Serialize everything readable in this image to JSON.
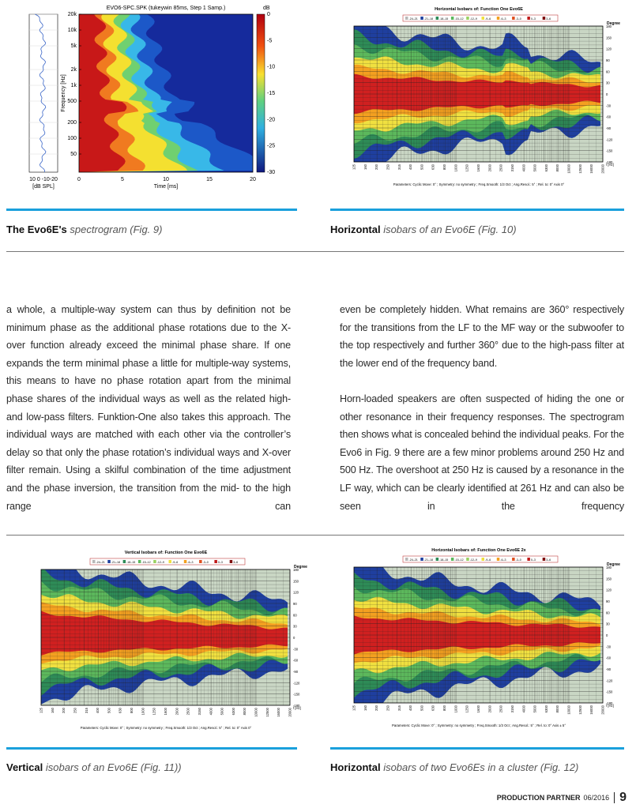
{
  "figures": [
    {
      "caption_bold": "The Evo6E's",
      "caption_italic": "spectrogram (Fig. 9)",
      "chart": {
        "title": "EVO6-SPC.SPK (tukeywin 85ms, Step 1 Samp.)",
        "ylabel": "Frequency [Hz]",
        "yticks": [
          "20k",
          "10k",
          "5k",
          "2k",
          "1k",
          "500",
          "200",
          "100",
          "50"
        ],
        "xticks": [
          "0",
          "5",
          "10",
          "15",
          "20"
        ],
        "xlabel": "Time [ms]",
        "colorbar_label": "dB",
        "colorbar_ticks": [
          "0",
          "-5",
          "-10",
          "-15",
          "-20",
          "-25",
          "-30"
        ],
        "response_ticks": "10 0 -10-20",
        "response_unit": "[dB SPL]"
      }
    },
    {
      "caption_bold": "Horizontal",
      "caption_italic": "isobars of an Evo6E (Fig. 10)",
      "chart": {
        "title": "Horizontal Isobars of:  Function One  Evo6E",
        "legend": [
          "-24–21",
          "-21–18",
          "-18–15",
          "-15–12",
          "-12–9",
          "-9–6",
          "-6–3",
          "-3–0",
          "0–3",
          "3–6"
        ],
        "ylabel": "Degree",
        "yticks": [
          "180",
          "150",
          "120",
          "90",
          "60",
          "30",
          "0",
          "-30",
          "-60",
          "-90",
          "-120",
          "-150",
          "-180"
        ],
        "xticks": [
          "125",
          "160",
          "200",
          "250",
          "315",
          "400",
          "500",
          "630",
          "800",
          "1000",
          "1250",
          "1600",
          "2000",
          "2500",
          "3150",
          "4000",
          "5000",
          "6300",
          "8000",
          "10000",
          "12500",
          "16000",
          "20000"
        ],
        "xlabel": "f [Hz]",
        "parameters": "Parameters:  Cyclic Move:  0°  ;  Symmetry: no symmetry  ;  Freq.Smooth: 1/3  Oct  ;  Ang.Resol.:  5°  ;  Rel. to: 0° Axis  0°"
      }
    },
    {
      "caption_bold": "Vertical",
      "caption_italic": "isobars of an Evo6E (Fig. 11))",
      "chart": {
        "title": "Vertical Isobars of:  Function One  Evo6E",
        "legend": [
          "-24–21",
          "-21–18",
          "-18–15",
          "-15–12",
          "-12–9",
          "-9–6",
          "-6–3",
          "-3–0",
          "0–3",
          "3–6"
        ],
        "ylabel": "Degree",
        "yticks": [
          "180",
          "150",
          "120",
          "90",
          "60",
          "30",
          "0",
          "-30",
          "-60",
          "-90",
          "-120",
          "-150",
          "-180"
        ],
        "xticks": [
          "125",
          "160",
          "200",
          "250",
          "315",
          "400",
          "500",
          "630",
          "800",
          "1000",
          "1250",
          "1600",
          "2000",
          "2500",
          "3150",
          "4000",
          "5000",
          "6300",
          "8000",
          "10000",
          "12500",
          "16000",
          "20000"
        ],
        "xlabel": "f [Hz]",
        "parameters": "Parameters:  Cyclic Move:  0°  ;  Symmetry: no symmetry  ;  Freq.Smooth: 1/3  Oct  ;  Ang.Resol.:  5°  ;  Rel. to: 0° Axis  0°"
      }
    },
    {
      "caption_bold": "Horizontal",
      "caption_italic": "isobars of two Evo6Es in a cluster (Fig. 12)",
      "chart": {
        "title": "Horizontal Isobars of:  Function One  Evo6E  2x",
        "legend": [
          "-24–21",
          "-21–18",
          "-18–15",
          "-15–12",
          "-12–9",
          "-9–6",
          "-6–3",
          "-3–0",
          "0–3",
          "3–6"
        ],
        "ylabel": "Degree",
        "yticks": [
          "180",
          "150",
          "120",
          "90",
          "60",
          "30",
          "0",
          "-30",
          "-60",
          "-90",
          "-120",
          "-150",
          "-180"
        ],
        "xticks": [
          "125",
          "160",
          "200",
          "250",
          "315",
          "400",
          "500",
          "630",
          "800",
          "1000",
          "1250",
          "1600",
          "2000",
          "2500",
          "3150",
          "4000",
          "5000",
          "6300",
          "8000",
          "10000",
          "12500",
          "16000",
          "20000"
        ],
        "xlabel": "f [Hz]",
        "parameters": "Parameters:  Cyclic Move:  0°  ;  Symmetry: no symmetry  ;  Freq.Smooth: 1/3  Oct  ;  Ang.Resol.:  5°  ;  Rel. to: 0° Axis  ± 5°"
      }
    }
  ],
  "body": {
    "left": "a whole, a multiple-way system can thus by definition not be minimum phase as the additional phase rotations due to the X-over function already exceed the minimal phase share. If one expands the term minimal phase a little for multiple-way systems, this means to have no phase rotation apart from the minimal phase shares of the individual ways as well as the related high- and low-pass filters. Funktion-One also takes this approach. The individual ways are matched with each other via the controller’s delay so that only the phase rotation’s individual ways and X-over filter remain. Using a skilful combination of the time adjustment and the phase inversion, the transition from the mid- to the high range can",
    "right": [
      "even be completely hidden. What remains are 360° respectively for the transitions from the LF to the MF way or the subwoofer to the top respectively and further 360° due to the high-pass filter at the lower end of the frequency band.",
      "Horn-loaded speakers are often suspected of hiding the one or other resonance in their frequency responses. The spectrogram then shows what is concealed behind the individual peaks. For the Evo6 in Fig. 9 there are a few minor problems around 250 Hz and 500 Hz. The overshoot at 250 Hz is caused by a resonance in the LF way, which can be clearly identified at 261 Hz and can also be seen in the frequency"
    ]
  },
  "footer": {
    "magazine": "PRODUCTION PARTNER",
    "issue": "06/2016",
    "page": "9"
  }
}
